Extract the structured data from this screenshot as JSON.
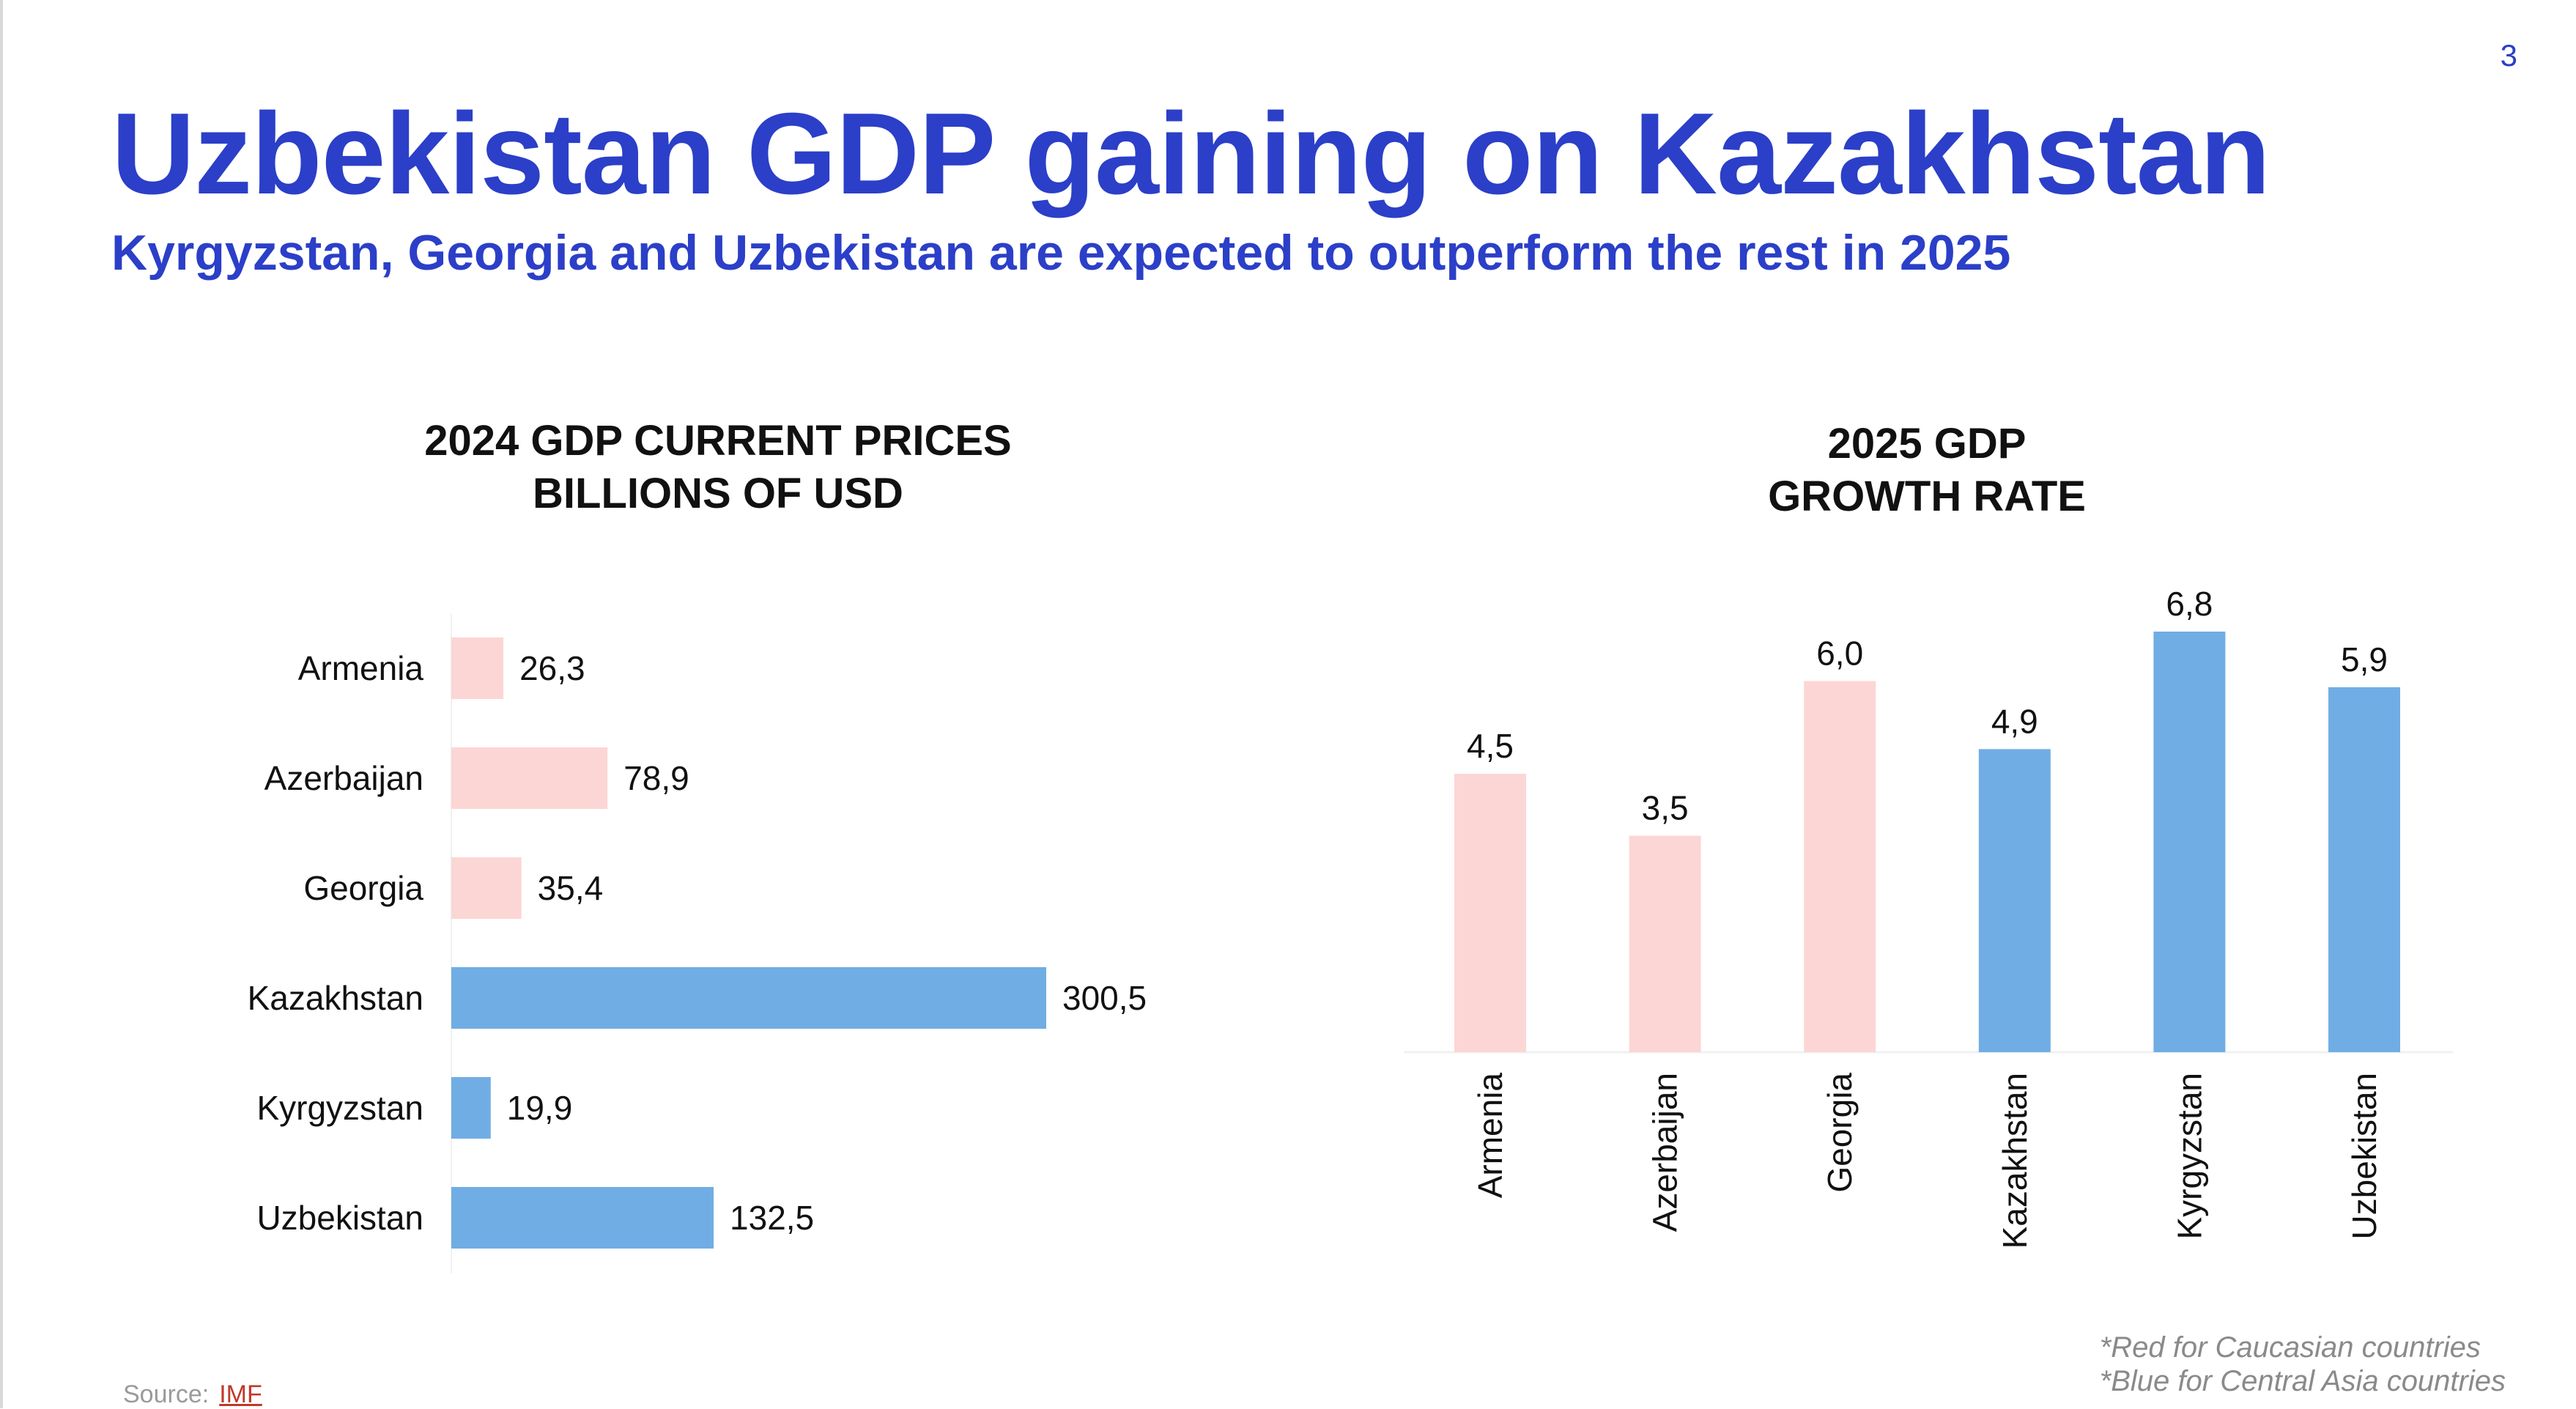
{
  "page_number": "3",
  "title": "Uzbekistan GDP gaining on Kazakhstan",
  "subtitle": "Kyrgyzstan, Georgia and Uzbekistan are expected to outperform the rest in 2025",
  "colors": {
    "accent": "#2b3fc8",
    "caucasian": "#fcd6d4",
    "central_asia": "#70ade4"
  },
  "chart_data": [
    {
      "type": "bar",
      "orientation": "horizontal",
      "title_lines": [
        "2024 GDP CURRENT PRICES",
        "BILLIONS OF USD"
      ],
      "categories": [
        "Armenia",
        "Azerbaijan",
        "Georgia",
        "Kazakhstan",
        "Kyrgyzstan",
        "Uzbekistan"
      ],
      "values": [
        26.3,
        78.9,
        35.4,
        300.5,
        19.9,
        132.5
      ],
      "value_labels": [
        "26,3",
        "78,9",
        "35,4",
        "300,5",
        "19,9",
        "132,5"
      ],
      "groups": [
        "caucasian",
        "caucasian",
        "caucasian",
        "central_asia",
        "central_asia",
        "central_asia"
      ],
      "xlim": [
        0,
        300.5
      ],
      "grid": false
    },
    {
      "type": "bar",
      "orientation": "vertical",
      "title_lines": [
        "2025 GDP",
        "GROWTH RATE"
      ],
      "categories": [
        "Armenia",
        "Azerbaijan",
        "Georgia",
        "Kazakhstan",
        "Kyrgyzstan",
        "Uzbekistan"
      ],
      "values": [
        4.5,
        3.5,
        6.0,
        4.9,
        6.8,
        5.9
      ],
      "value_labels": [
        "4,5",
        "3,5",
        "6,0",
        "4,9",
        "6,8",
        "5,9"
      ],
      "groups": [
        "caucasian",
        "caucasian",
        "caucasian",
        "central_asia",
        "central_asia",
        "central_asia"
      ],
      "ylim": [
        0,
        6.8
      ],
      "grid": false
    }
  ],
  "notes": [
    "*Red for Caucasian countries",
    "*Blue for Central Asia countries"
  ],
  "source": {
    "label": "Source:",
    "link_text": "IMF"
  }
}
